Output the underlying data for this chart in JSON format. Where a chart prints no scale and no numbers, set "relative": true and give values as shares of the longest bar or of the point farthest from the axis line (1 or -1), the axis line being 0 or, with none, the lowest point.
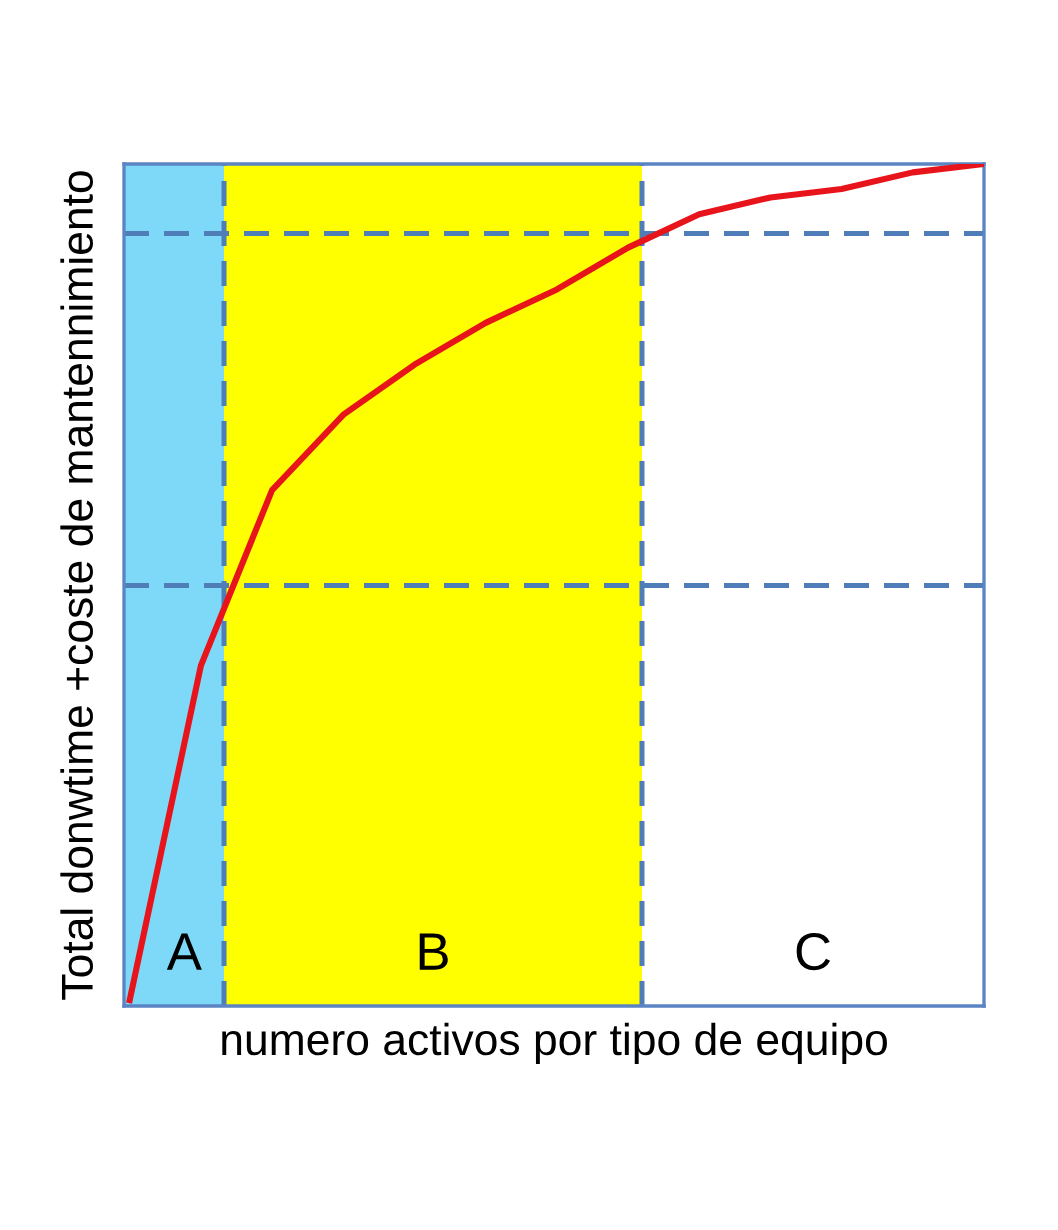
{
  "chart_data": {
    "type": "line",
    "relative": true,
    "xlabel": "numero activos por tipo de equipo",
    "ylabel": "Total donwtime +coste de mantennimiento",
    "categories": [
      null,
      null,
      null,
      null,
      null,
      null,
      null,
      null,
      null,
      null,
      null,
      null,
      null
    ],
    "series": [
      {
        "color": "#e8141b",
        "values": [
          0,
          0.4,
          0.61,
          0.7,
          0.76,
          0.81,
          0.85,
          0.9,
          0.94,
          0.96,
          0.97,
          0.99,
          1.0
        ]
      }
    ],
    "annotations": [
      "A",
      "B",
      "C"
    ],
    "ref_lines": [
      {
        "axis": "y",
        "value": 0.917,
        "color": "#4f7db8",
        "line_style": "dashed"
      },
      {
        "axis": "y",
        "value": 0.496,
        "color": "#4f7db8",
        "line_style": "dashed"
      }
    ],
    "line_style": "solid",
    "marker": "none",
    "legend": false
  }
}
